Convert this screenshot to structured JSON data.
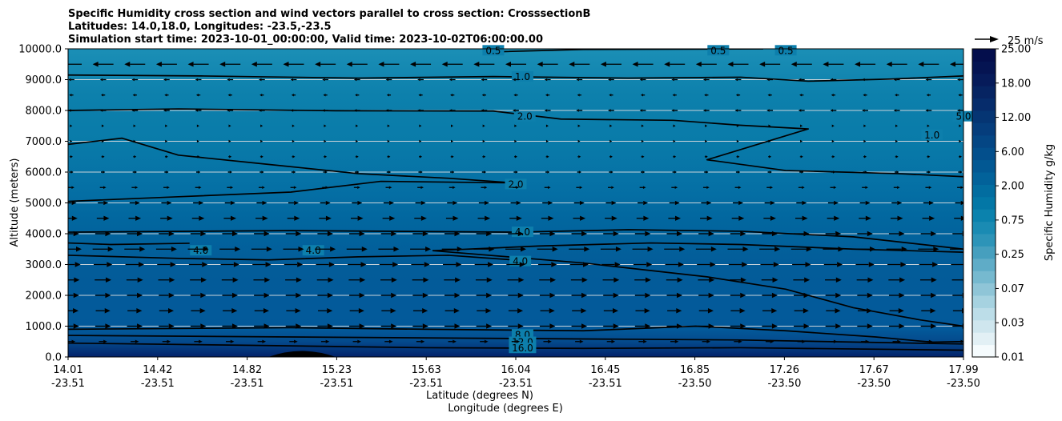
{
  "chart_data": {
    "type": "contour",
    "title_lines": [
      "Specific Humidity cross section and wind vectors parallel to cross section: CrosssectionB",
      "Latitudes: 14.0,18.0, Longitudes: -23.5,-23.5",
      "Simulation start time: 2023-10-01_00:00:00, Valid time: 2023-10-02T06:00:00.00"
    ],
    "ylabel": "Altitude (meters)",
    "xlabel_lat": "Latitude (degrees N)",
    "xlabel_lon": "Longitude (degrees E)",
    "ylim": [
      0,
      10000
    ],
    "yticks": [
      "0.0",
      "1000.0",
      "2000.0",
      "3000.0",
      "4000.0",
      "5000.0",
      "6000.0",
      "7000.0",
      "8000.0",
      "9000.0",
      "10000.0"
    ],
    "lat_ticks": [
      "14.01",
      "14.42",
      "14.82",
      "15.23",
      "15.63",
      "16.04",
      "16.45",
      "16.85",
      "17.26",
      "17.67",
      "17.99"
    ],
    "lon_ticks": [
      "-23.51",
      "-23.51",
      "-23.51",
      "-23.51",
      "-23.51",
      "-23.51",
      "-23.51",
      "-23.50",
      "-23.50",
      "-23.50",
      "-23.50"
    ],
    "colorbar": {
      "label": "Specific Humidity g/kg",
      "tick_labels": [
        "0.01",
        "0.03",
        "0.07",
        "0.25",
        "0.75",
        "2.00",
        "6.00",
        "12.00",
        "18.00",
        "25.00"
      ],
      "colors": [
        "#f5fbfd",
        "#e2f0f5",
        "#cfe6ee",
        "#bcdde8",
        "#a6d2e0",
        "#8fc5d7",
        "#76b9cf",
        "#5facc7",
        "#469fbe",
        "#2d94b8",
        "#1a8bb3",
        "#0b82ad",
        "#0377a6",
        "#026da0",
        "#02629a",
        "#025893",
        "#034f8c",
        "#044684",
        "#053d7c",
        "#053573",
        "#062c6b",
        "#062462",
        "#061b5a",
        "#051452",
        "#040e4c"
      ]
    },
    "quiver_key": "25 m/s",
    "contour_labels": [
      {
        "text": "0.5",
        "lat": 15.9,
        "alt": 9940
      },
      {
        "text": "0.5",
        "lat": 16.9,
        "alt": 9940
      },
      {
        "text": "0.5",
        "lat": 17.2,
        "alt": 9940
      },
      {
        "text": "1.0",
        "lat": 16.03,
        "alt": 9090
      },
      {
        "text": "2.0",
        "lat": 16.04,
        "alt": 7800
      },
      {
        "text": "2.0",
        "lat": 16.0,
        "alt": 5600
      },
      {
        "text": "1.0",
        "lat": 17.85,
        "alt": 7200
      },
      {
        "text": "5.0",
        "lat": 17.99,
        "alt": 7800
      },
      {
        "text": "4.0",
        "lat": 14.6,
        "alt": 3450
      },
      {
        "text": "4.0",
        "lat": 15.1,
        "alt": 3450
      },
      {
        "text": "4.0",
        "lat": 16.03,
        "alt": 4050
      },
      {
        "text": "4.0",
        "lat": 16.02,
        "alt": 3100
      },
      {
        "text": "8.0",
        "lat": 16.03,
        "alt": 720
      },
      {
        "text": "12.0",
        "lat": 16.03,
        "alt": 480
      },
      {
        "text": "16.0",
        "lat": 16.03,
        "alt": 280
      }
    ],
    "wind_rows": [
      {
        "alt": 9500,
        "dir": "left",
        "speed": 20
      },
      {
        "alt": 9000,
        "dir": "left",
        "speed": 6
      },
      {
        "alt": 8500,
        "dir": "left",
        "speed": 4
      },
      {
        "alt": 8000,
        "dir": "left",
        "speed": 6
      },
      {
        "alt": 7500,
        "dir": "right",
        "speed": 2
      },
      {
        "alt": 7000,
        "dir": "right",
        "speed": 2
      },
      {
        "alt": 6500,
        "dir": "right",
        "speed": 3
      },
      {
        "alt": 6000,
        "dir": "right",
        "speed": 4
      },
      {
        "alt": 5500,
        "dir": "right",
        "speed": 6
      },
      {
        "alt": 5000,
        "dir": "right",
        "speed": 10
      },
      {
        "alt": 4500,
        "dir": "right",
        "speed": 12
      },
      {
        "alt": 4000,
        "dir": "right",
        "speed": 15
      },
      {
        "alt": 3500,
        "dir": "right",
        "speed": 20
      },
      {
        "alt": 3000,
        "dir": "right",
        "speed": 18
      },
      {
        "alt": 2500,
        "dir": "right",
        "speed": 16
      },
      {
        "alt": 2000,
        "dir": "right",
        "speed": 15
      },
      {
        "alt": 1500,
        "dir": "right",
        "speed": 14
      },
      {
        "alt": 1000,
        "dir": "right",
        "speed": 15
      },
      {
        "alt": 500,
        "dir": "right",
        "speed": 8
      }
    ],
    "contours": [
      {
        "level": "0.5",
        "points": [
          [
            15.9,
            9900
          ],
          [
            16.3,
            9980
          ],
          [
            17.1,
            10000
          ]
        ]
      },
      {
        "level": "1.0",
        "points": [
          [
            14.01,
            9150
          ],
          [
            14.6,
            9120
          ],
          [
            15.3,
            9050
          ],
          [
            15.9,
            9100
          ],
          [
            16.5,
            9050
          ],
          [
            17.0,
            9080
          ],
          [
            17.3,
            8950
          ],
          [
            17.67,
            9020
          ],
          [
            17.99,
            9120
          ]
        ]
      },
      {
        "level": "2.0",
        "points": [
          [
            14.01,
            8000
          ],
          [
            14.5,
            8050
          ],
          [
            15.2,
            7990
          ],
          [
            15.9,
            7980
          ],
          [
            16.2,
            7720
          ],
          [
            16.7,
            7680
          ],
          [
            17.0,
            7520
          ],
          [
            17.3,
            7400
          ],
          [
            16.85,
            6400
          ],
          [
            17.2,
            6050
          ],
          [
            17.7,
            5950
          ],
          [
            17.99,
            5850
          ]
        ]
      },
      {
        "level": "2.0",
        "points": [
          [
            14.01,
            6900
          ],
          [
            14.25,
            7100
          ],
          [
            14.5,
            6550
          ],
          [
            14.9,
            6250
          ],
          [
            15.3,
            5950
          ],
          [
            15.7,
            5800
          ],
          [
            15.99,
            5650
          ]
        ]
      },
      {
        "level": "2.0",
        "points": [
          [
            14.01,
            5050
          ],
          [
            14.5,
            5200
          ],
          [
            15.0,
            5350
          ],
          [
            15.4,
            5700
          ],
          [
            15.99,
            5650
          ]
        ]
      },
      {
        "level": "4.0",
        "points": [
          [
            14.01,
            4050
          ],
          [
            15.0,
            4100
          ],
          [
            16.0,
            4050
          ],
          [
            16.5,
            4130
          ],
          [
            17.0,
            4080
          ],
          [
            17.5,
            3900
          ],
          [
            17.99,
            3500
          ]
        ]
      },
      {
        "level": "4.0",
        "points": [
          [
            14.01,
            3700
          ],
          [
            14.2,
            3650
          ],
          [
            14.55,
            3690
          ]
        ]
      },
      {
        "level": "4.0",
        "points": [
          [
            14.01,
            3300
          ],
          [
            14.5,
            3200
          ],
          [
            14.9,
            3150
          ],
          [
            15.3,
            3250
          ],
          [
            15.7,
            3300
          ],
          [
            15.99,
            3150
          ]
        ]
      },
      {
        "level": "4.0",
        "points": [
          [
            15.63,
            3450
          ],
          [
            16.1,
            3600
          ],
          [
            16.6,
            3700
          ],
          [
            17.0,
            3650
          ],
          [
            17.5,
            3500
          ],
          [
            17.99,
            3400
          ]
        ]
      },
      {
        "level": "4.0",
        "points": [
          [
            15.63,
            3450
          ],
          [
            16.3,
            3050
          ],
          [
            16.85,
            2600
          ],
          [
            17.2,
            2200
          ],
          [
            17.5,
            1600
          ],
          [
            17.8,
            1200
          ],
          [
            17.99,
            1000
          ]
        ]
      },
      {
        "level": "8.0",
        "points": [
          [
            14.01,
            900
          ],
          [
            15.0,
            950
          ],
          [
            15.6,
            900
          ],
          [
            16.3,
            850
          ],
          [
            16.8,
            1000
          ],
          [
            17.2,
            850
          ],
          [
            17.6,
            650
          ],
          [
            17.85,
            480
          ],
          [
            17.99,
            500
          ]
        ]
      },
      {
        "level": "12.0",
        "points": [
          [
            14.01,
            700
          ],
          [
            15.0,
            650
          ],
          [
            16.0,
            600
          ],
          [
            17.0,
            550
          ],
          [
            17.99,
            420
          ]
        ]
      },
      {
        "level": "16.0",
        "points": [
          [
            14.01,
            450
          ],
          [
            14.8,
            380
          ],
          [
            15.6,
            300
          ],
          [
            16.3,
            280
          ],
          [
            17.0,
            300
          ],
          [
            17.99,
            220
          ]
        ]
      }
    ],
    "terrain_bump": {
      "lat_start": 14.9,
      "lat_peak": 15.05,
      "lat_end": 15.2,
      "alt_peak": 180
    }
  }
}
